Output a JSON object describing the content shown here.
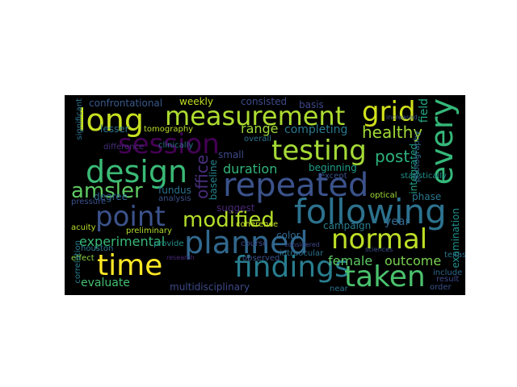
{
  "words": [
    {
      "id": "long",
      "text": "long",
      "color": "#c7e020"
    },
    {
      "id": "measurement",
      "text": "measurement",
      "color": "#addc30"
    },
    {
      "id": "grid",
      "text": "grid",
      "color": "#d2e21b"
    },
    {
      "id": "every",
      "text": "every",
      "color": "#35b779"
    },
    {
      "id": "session",
      "text": "session",
      "color": "#440154"
    },
    {
      "id": "testing",
      "text": "testing",
      "color": "#a5db36"
    },
    {
      "id": "design",
      "text": "design",
      "color": "#3aba76"
    },
    {
      "id": "repeated",
      "text": "repeated",
      "color": "#3b528b"
    },
    {
      "id": "following",
      "text": "following",
      "color": "#2c728e"
    },
    {
      "id": "amsler",
      "text": "amsler",
      "color": "#5ec962"
    },
    {
      "id": "point",
      "text": "point",
      "color": "#3b528b"
    },
    {
      "id": "modified",
      "text": "modified",
      "color": "#b5de2b"
    },
    {
      "id": "normal",
      "text": "normal",
      "color": "#bddf26"
    },
    {
      "id": "planned",
      "text": "planned",
      "color": "#31688e"
    },
    {
      "id": "time",
      "text": "time",
      "color": "#fde725"
    },
    {
      "id": "findings",
      "text": "findings",
      "color": "#287d8e"
    },
    {
      "id": "taken",
      "text": "taken",
      "color": "#4ac16d"
    },
    {
      "id": "office",
      "text": "office",
      "color": "#472d7b"
    },
    {
      "id": "healthy",
      "text": "healthy",
      "color": "#a2da37"
    },
    {
      "id": "post",
      "text": "post",
      "color": "#2db27d"
    },
    {
      "id": "range",
      "text": "range",
      "color": "#9fda3a"
    },
    {
      "id": "duration",
      "text": "duration",
      "color": "#31b57b"
    },
    {
      "id": "experimental",
      "text": "experimental",
      "color": "#38b977"
    },
    {
      "id": "female",
      "text": "female",
      "color": "#5ec962"
    },
    {
      "id": "outcome",
      "text": "outcome",
      "color": "#7ad151"
    },
    {
      "id": "evaluate",
      "text": "evaluate",
      "color": "#44bf70"
    },
    {
      "id": "multidisciplinary",
      "text": "multidisciplinary",
      "color": "#3e4a89"
    },
    {
      "id": "campaign",
      "text": "campaign",
      "color": "#287d8e"
    },
    {
      "id": "year",
      "text": "year",
      "color": "#31688e"
    },
    {
      "id": "confrontational",
      "text": "confrontational",
      "color": "#38598c"
    },
    {
      "id": "weekly",
      "text": "weekly",
      "color": "#c2df23"
    },
    {
      "id": "consisted",
      "text": "consisted",
      "color": "#3e4a89"
    },
    {
      "id": "basis",
      "text": "basis",
      "color": "#3f4889"
    },
    {
      "id": "completing",
      "text": "completing",
      "color": "#2a788e"
    },
    {
      "id": "lesser",
      "text": "lesser",
      "color": "#2c728e"
    },
    {
      "id": "tomography",
      "text": "tomography",
      "color": "#b8de29"
    },
    {
      "id": "degree",
      "text": "degree",
      "color": "#32648e"
    },
    {
      "id": "beginning",
      "text": "beginning",
      "color": "#1f9e89"
    },
    {
      "id": "integrated",
      "text": "integrated",
      "color": "#1fa187"
    },
    {
      "id": "field",
      "text": "field",
      "color": "#22a884"
    },
    {
      "id": "phase",
      "text": "phase",
      "color": "#2a788e"
    },
    {
      "id": "examination",
      "text": "examination",
      "color": "#21918c"
    },
    {
      "id": "color",
      "text": "color",
      "color": "#31688e"
    },
    {
      "id": "fundus",
      "text": "fundus",
      "color": "#2c728e"
    },
    {
      "id": "analysis",
      "text": "analysis",
      "color": "#3b528b"
    },
    {
      "id": "suggest",
      "text": "suggest",
      "color": "#482878"
    },
    {
      "id": "small",
      "text": "small",
      "color": "#3e4989"
    },
    {
      "id": "coherence",
      "text": "coherence",
      "color": "#c2df23"
    },
    {
      "id": "baseline",
      "text": "baseline",
      "color": "#26828e"
    },
    {
      "id": "acuity",
      "text": "acuity",
      "color": "#b8de29"
    },
    {
      "id": "pressure",
      "text": "pressure",
      "color": "#3b528b"
    },
    {
      "id": "effect",
      "text": "effect",
      "color": "#8fd744"
    },
    {
      "id": "correlation",
      "text": "correlation",
      "color": "#287d8e"
    },
    {
      "id": "significant",
      "text": "significant",
      "color": "#2c728e"
    },
    {
      "id": "preliminary",
      "text": "preliminary",
      "color": "#b5de2b"
    },
    {
      "id": "provide",
      "text": "provide",
      "color": "#21918c"
    },
    {
      "id": "observed",
      "text": "observed",
      "color": "#3b528b"
    },
    {
      "id": "intraocular",
      "text": "intraocular",
      "color": "#2c728e"
    },
    {
      "id": "near",
      "text": "near",
      "color": "#2c728e"
    },
    {
      "id": "include",
      "text": "include",
      "color": "#31688e"
    },
    {
      "id": "result",
      "text": "result",
      "color": "#3e4989"
    },
    {
      "id": "order",
      "text": "order",
      "color": "#3b528b"
    },
    {
      "id": "optical",
      "text": "optical",
      "color": "#a0da39"
    },
    {
      "id": "statistically",
      "text": "statistically",
      "color": "#21918c"
    },
    {
      "id": "photography",
      "text": "photography",
      "color": "#31688e"
    },
    {
      "id": "texas",
      "text": "texas",
      "color": "#2c728e"
    },
    {
      "id": "course",
      "text": "course",
      "color": "#3e4989"
    },
    {
      "id": "overall",
      "text": "overall",
      "color": "#2c728e"
    },
    {
      "id": "except",
      "text": "except",
      "color": "#3b528b"
    },
    {
      "id": "clinically",
      "text": "clinically",
      "color": "#2c728e"
    },
    {
      "id": "difference",
      "text": "difference",
      "color": "#472d7b"
    },
    {
      "id": "houston",
      "text": "houston",
      "color": "#2a788e"
    },
    {
      "id": "sciences",
      "text": "sciences",
      "color": "#3b528b"
    },
    {
      "id": "considered",
      "text": "considered",
      "color": "#3e4989"
    },
    {
      "id": "research",
      "text": "research",
      "color": "#482878"
    },
    {
      "id": "increased",
      "text": "increased",
      "color": "#3b528b"
    }
  ]
}
